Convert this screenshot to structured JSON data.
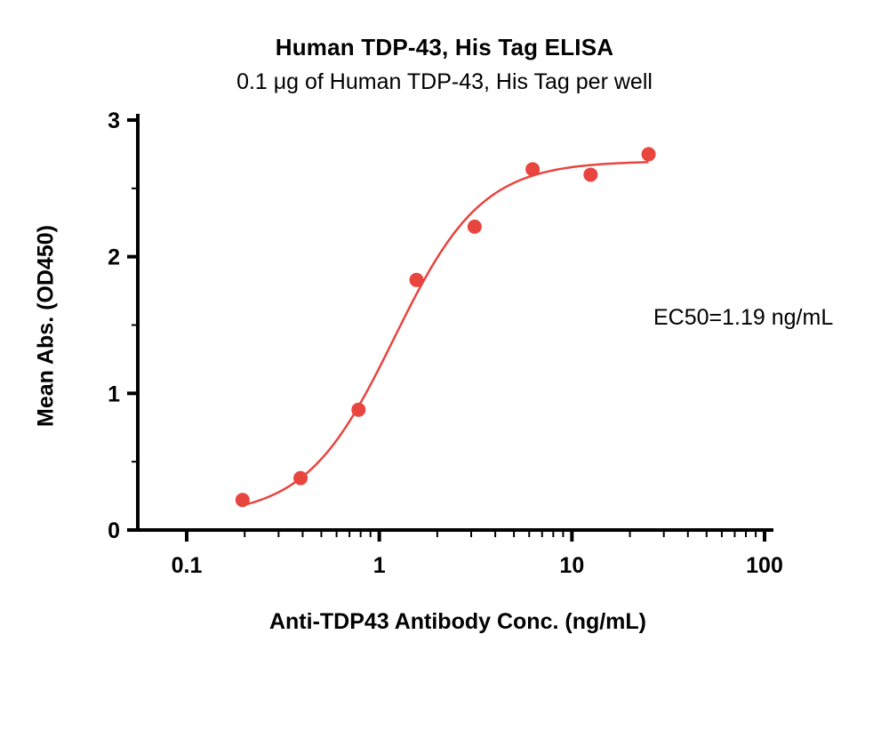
{
  "chart_data": {
    "type": "scatter",
    "title": "Human TDP-43, His Tag ELISA",
    "subtitle": "0.1 μg of Human TDP-43, His Tag per well",
    "xlabel": "Anti-TDP43 Antibody Conc. (ng/mL)",
    "ylabel": "Mean Abs. (OD450)",
    "annotation": "EC50=1.19 ng/mL",
    "x_scale": "log10",
    "xlim": [
      0.1,
      100
    ],
    "ylim": [
      0,
      3
    ],
    "x_ticks": [
      0.1,
      1,
      10,
      100
    ],
    "x_tick_labels": [
      "0.1",
      "1",
      "10",
      "100"
    ],
    "y_ticks": [
      0,
      1,
      2,
      3
    ],
    "y_tick_labels": [
      "0",
      "1",
      "2",
      "3"
    ],
    "grid": false,
    "legend": "none",
    "marker_color": "#e8453f",
    "line_color": "#e8453f",
    "axis_color": "#000000",
    "points": {
      "x": [
        0.195,
        0.39,
        0.78,
        1.56,
        3.125,
        6.25,
        12.5,
        25
      ],
      "y": [
        0.22,
        0.38,
        0.88,
        1.83,
        2.22,
        2.64,
        2.6,
        2.75
      ]
    },
    "fit": {
      "model": "4PL",
      "bottom": 0.1,
      "top": 2.7,
      "ec50": 1.19,
      "hill": 1.9,
      "x_range": [
        0.195,
        25
      ]
    }
  }
}
